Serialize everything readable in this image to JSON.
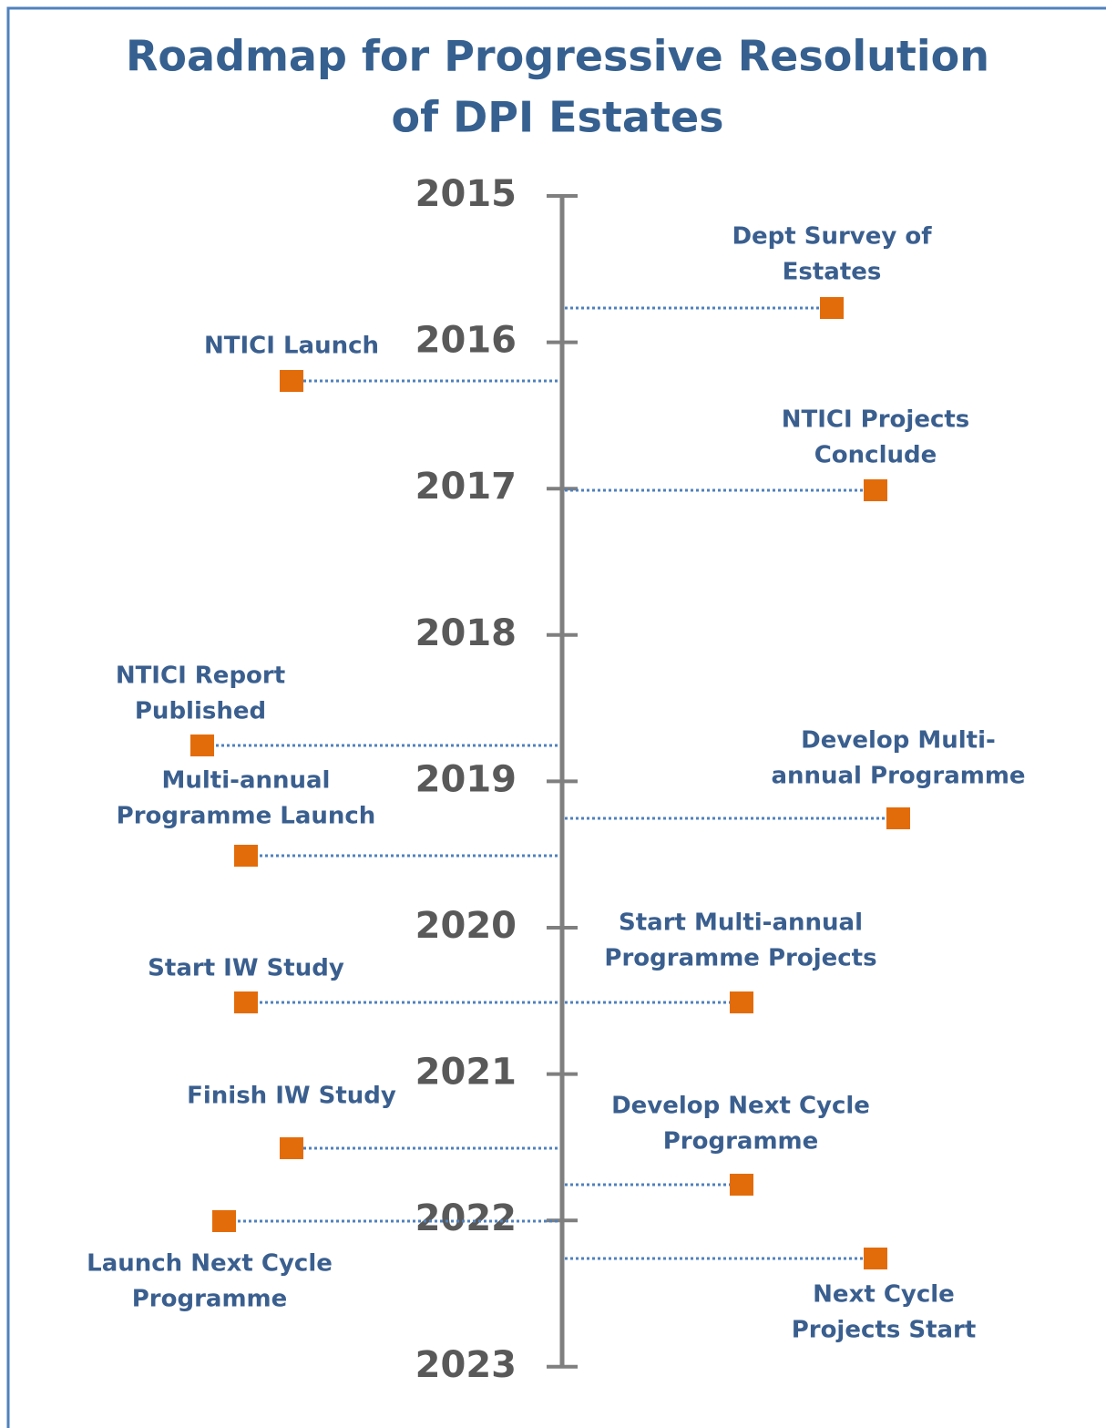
{
  "title": [
    "Roadmap for Progressive Resolution",
    "of DPI Estates"
  ],
  "years": [
    "2015",
    "2016",
    "2017",
    "2018",
    "2019",
    "2020",
    "2021",
    "2022",
    "2023"
  ],
  "events": [
    {
      "lines": [
        "Dept Survey of",
        "Estates"
      ]
    },
    {
      "lines": [
        "NTICI Launch"
      ]
    },
    {
      "lines": [
        "NTICI Projects",
        "Conclude"
      ]
    },
    {
      "lines": [
        "NTICI Report",
        "Published"
      ]
    },
    {
      "lines": [
        "Develop Multi-",
        "annual Programme"
      ]
    },
    {
      "lines": [
        "Multi-annual",
        "Programme Launch"
      ]
    },
    {
      "lines": [
        "Start IW Study"
      ]
    },
    {
      "lines": [
        "Start Multi-annual",
        "Programme Projects"
      ]
    },
    {
      "lines": [
        "Finish IW Study"
      ]
    },
    {
      "lines": [
        "Develop Next Cycle",
        "Programme"
      ]
    },
    {
      "lines": [
        "Launch Next Cycle",
        "Programme"
      ]
    },
    {
      "lines": [
        "Next Cycle",
        "Projects Start"
      ]
    }
  ]
}
